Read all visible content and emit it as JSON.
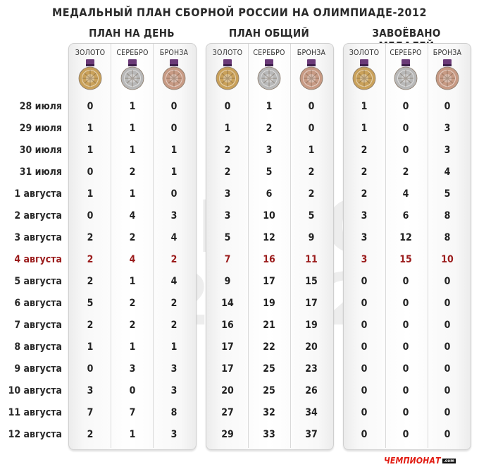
{
  "title": "МЕДАЛЬНЫЙ ПЛАН СБОРНОЙ РОССИИ НА ОЛИМПИАДЕ-2012",
  "watermark": {
    "line1": "LONDON",
    "line2": "2012"
  },
  "groups": [
    {
      "title": "ПЛАН НА ДЕНЬ"
    },
    {
      "title": "ПЛАН ОБЩИЙ"
    },
    {
      "title": "ЗАВОЁВАНО МЕДАЛЕЙ"
    }
  ],
  "medal_columns": [
    "ЗОЛОТО",
    "СЕРЕБРО",
    "БРОНЗА"
  ],
  "medal_colors": {
    "gold": "#c9a15a",
    "silver": "#b8b8b8",
    "bronze": "#c79a84"
  },
  "highlight_color": "#9b1c1c",
  "highlight_row": 7,
  "logo": {
    "text": "ЧЕМПИОНАТ",
    "suffix": ".com"
  },
  "chart_data": {
    "type": "table",
    "title": "МЕДАЛЬНЫЙ ПЛАН СБОРНОЙ РОССИИ НА ОЛИМПИАДЕ-2012",
    "columns": [
      "ЗОЛОТО",
      "СЕРЕБРО",
      "БРОНЗА"
    ],
    "dates": [
      "28 июля",
      "29 июля",
      "30 июля",
      "31 июля",
      "1 августа",
      "2 августа",
      "3 августа",
      "4 августа",
      "5 августа",
      "6 августа",
      "7 августа",
      "8 августа",
      "9 августа",
      "10 августа",
      "11 августа",
      "12 августа"
    ],
    "series": [
      {
        "name": "ПЛАН НА ДЕНЬ",
        "rows": [
          [
            0,
            1,
            0
          ],
          [
            1,
            1,
            0
          ],
          [
            1,
            1,
            1
          ],
          [
            0,
            2,
            1
          ],
          [
            1,
            1,
            0
          ],
          [
            0,
            4,
            3
          ],
          [
            2,
            2,
            4
          ],
          [
            2,
            4,
            2
          ],
          [
            2,
            1,
            4
          ],
          [
            5,
            2,
            2
          ],
          [
            2,
            2,
            2
          ],
          [
            1,
            1,
            1
          ],
          [
            0,
            3,
            3
          ],
          [
            3,
            0,
            3
          ],
          [
            7,
            7,
            8
          ],
          [
            2,
            1,
            3
          ]
        ]
      },
      {
        "name": "ПЛАН ОБЩИЙ",
        "rows": [
          [
            0,
            1,
            0
          ],
          [
            1,
            2,
            0
          ],
          [
            2,
            3,
            1
          ],
          [
            2,
            5,
            2
          ],
          [
            3,
            6,
            2
          ],
          [
            3,
            10,
            5
          ],
          [
            5,
            12,
            9
          ],
          [
            7,
            16,
            11
          ],
          [
            9,
            17,
            15
          ],
          [
            14,
            19,
            17
          ],
          [
            16,
            21,
            19
          ],
          [
            17,
            22,
            20
          ],
          [
            17,
            25,
            23
          ],
          [
            20,
            25,
            26
          ],
          [
            27,
            32,
            34
          ],
          [
            29,
            33,
            37
          ]
        ]
      },
      {
        "name": "ЗАВОЁВАНО МЕДАЛЕЙ",
        "rows": [
          [
            1,
            0,
            0
          ],
          [
            1,
            0,
            3
          ],
          [
            2,
            0,
            3
          ],
          [
            2,
            2,
            4
          ],
          [
            2,
            4,
            5
          ],
          [
            3,
            6,
            8
          ],
          [
            3,
            12,
            8
          ],
          [
            3,
            15,
            10
          ],
          [
            0,
            0,
            0
          ],
          [
            0,
            0,
            0
          ],
          [
            0,
            0,
            0
          ],
          [
            0,
            0,
            0
          ],
          [
            0,
            0,
            0
          ],
          [
            0,
            0,
            0
          ],
          [
            0,
            0,
            0
          ],
          [
            0,
            0,
            0
          ]
        ]
      }
    ]
  }
}
